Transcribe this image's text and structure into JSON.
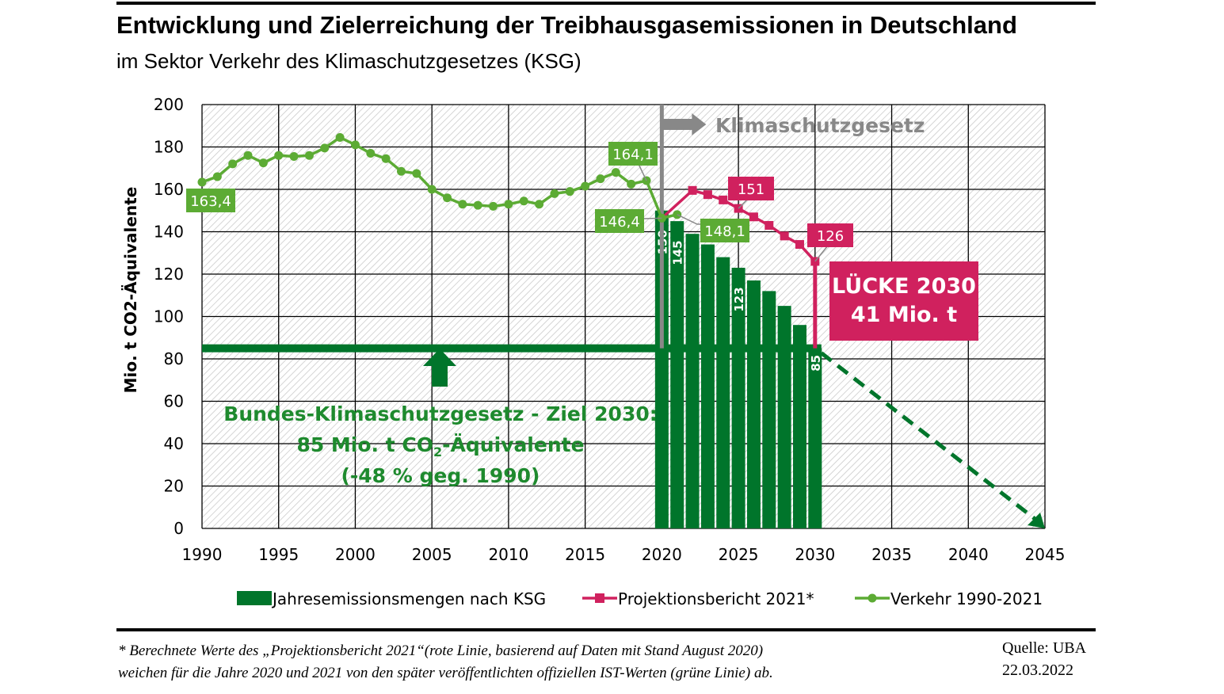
{
  "header": {
    "title": "Entwicklung und Zielerreichung der Treibhausgasemissionen in Deutschland",
    "subtitle": "im Sektor Verkehr des Klimaschutzgesetzes (KSG)"
  },
  "footer": {
    "footnote_line1": "* Berechnete Werte des „Projektionsbericht 2021“(rote Linie, basierend auf Daten mit Stand August 2020)",
    "footnote_line2": "weichen für die Jahre 2020 und 2021 von den später veröffentlichten offiziellen IST-Werten (grüne Linie) ab.",
    "source": "Quelle: UBA",
    "date": "22.03.2022"
  },
  "chart_data": {
    "type": "bar+line",
    "ylabel": "Mio. t CO2-Äquivalente",
    "xlim": [
      1990,
      2045
    ],
    "ylim": [
      0,
      200
    ],
    "xticks": [
      1990,
      1995,
      2000,
      2005,
      2010,
      2015,
      2020,
      2025,
      2030,
      2035,
      2040,
      2045
    ],
    "yticks": [
      0,
      20,
      40,
      60,
      80,
      100,
      120,
      140,
      160,
      180,
      200
    ],
    "grid": true,
    "legend_position": "bottom",
    "colors": {
      "bars": "#00752b",
      "projection": "#d0215e",
      "verkehr": "#5cab34",
      "gap_box": "#d0215e",
      "ksg_marker": "#888888"
    },
    "series": [
      {
        "name": "Jahresemissionsmengen nach KSG",
        "kind": "bar",
        "x": [
          2020,
          2021,
          2022,
          2023,
          2024,
          2025,
          2026,
          2027,
          2028,
          2029,
          2030
        ],
        "values": [
          150,
          145,
          139,
          134,
          128,
          123,
          117,
          112,
          105,
          96,
          85
        ],
        "labels": {
          "2020": "150",
          "2021": "145",
          "2025": "123",
          "2030": "85"
        }
      },
      {
        "name": "Projektionsbericht 2021*",
        "kind": "line",
        "x": [
          2020,
          2022,
          2023,
          2024,
          2025,
          2026,
          2027,
          2028,
          2029,
          2030
        ],
        "values": [
          146.4,
          159.5,
          157.5,
          155,
          151,
          147,
          143,
          138,
          134,
          126
        ],
        "labels": {
          "2025": "151",
          "2030": "126"
        }
      },
      {
        "name": "Verkehr 1990-2021",
        "kind": "line",
        "x": [
          1990,
          1991,
          1992,
          1993,
          1994,
          1995,
          1996,
          1997,
          1998,
          1999,
          2000,
          2001,
          2002,
          2003,
          2004,
          2005,
          2006,
          2007,
          2008,
          2009,
          2010,
          2011,
          2012,
          2013,
          2014,
          2015,
          2016,
          2017,
          2018,
          2019,
          2020,
          2021
        ],
        "values": [
          163.4,
          166,
          172,
          176,
          172.5,
          176,
          175.5,
          176,
          179.5,
          184.5,
          181,
          177,
          174.5,
          168.5,
          167.5,
          160,
          156,
          153,
          152.5,
          152,
          153,
          154.5,
          153,
          158,
          159,
          161.5,
          165,
          168,
          162.5,
          164.1,
          146.4,
          148.1
        ],
        "labels": {
          "1990": "163,4",
          "2019": "164,1",
          "2020": "146,4",
          "2021": "148,1"
        }
      }
    ],
    "target": {
      "value": 85,
      "from": 1990,
      "to": 2030,
      "trend_to": 2045,
      "trend_value": 0
    },
    "annotations": {
      "ksg": "Klimaschutzgesetz",
      "ksg_year": 2020,
      "gap_line1": "LÜCKE 2030",
      "gap_line2": "41 Mio. t",
      "target_line1": "Bundes-Klimaschutzgesetz - Ziel 2030:",
      "target_line2_a": "85 Mio. t CO",
      "target_line2_sub": "2",
      "target_line2_b": "-Äquivalente",
      "target_line3": "(-48 % geg. 1990)"
    }
  }
}
